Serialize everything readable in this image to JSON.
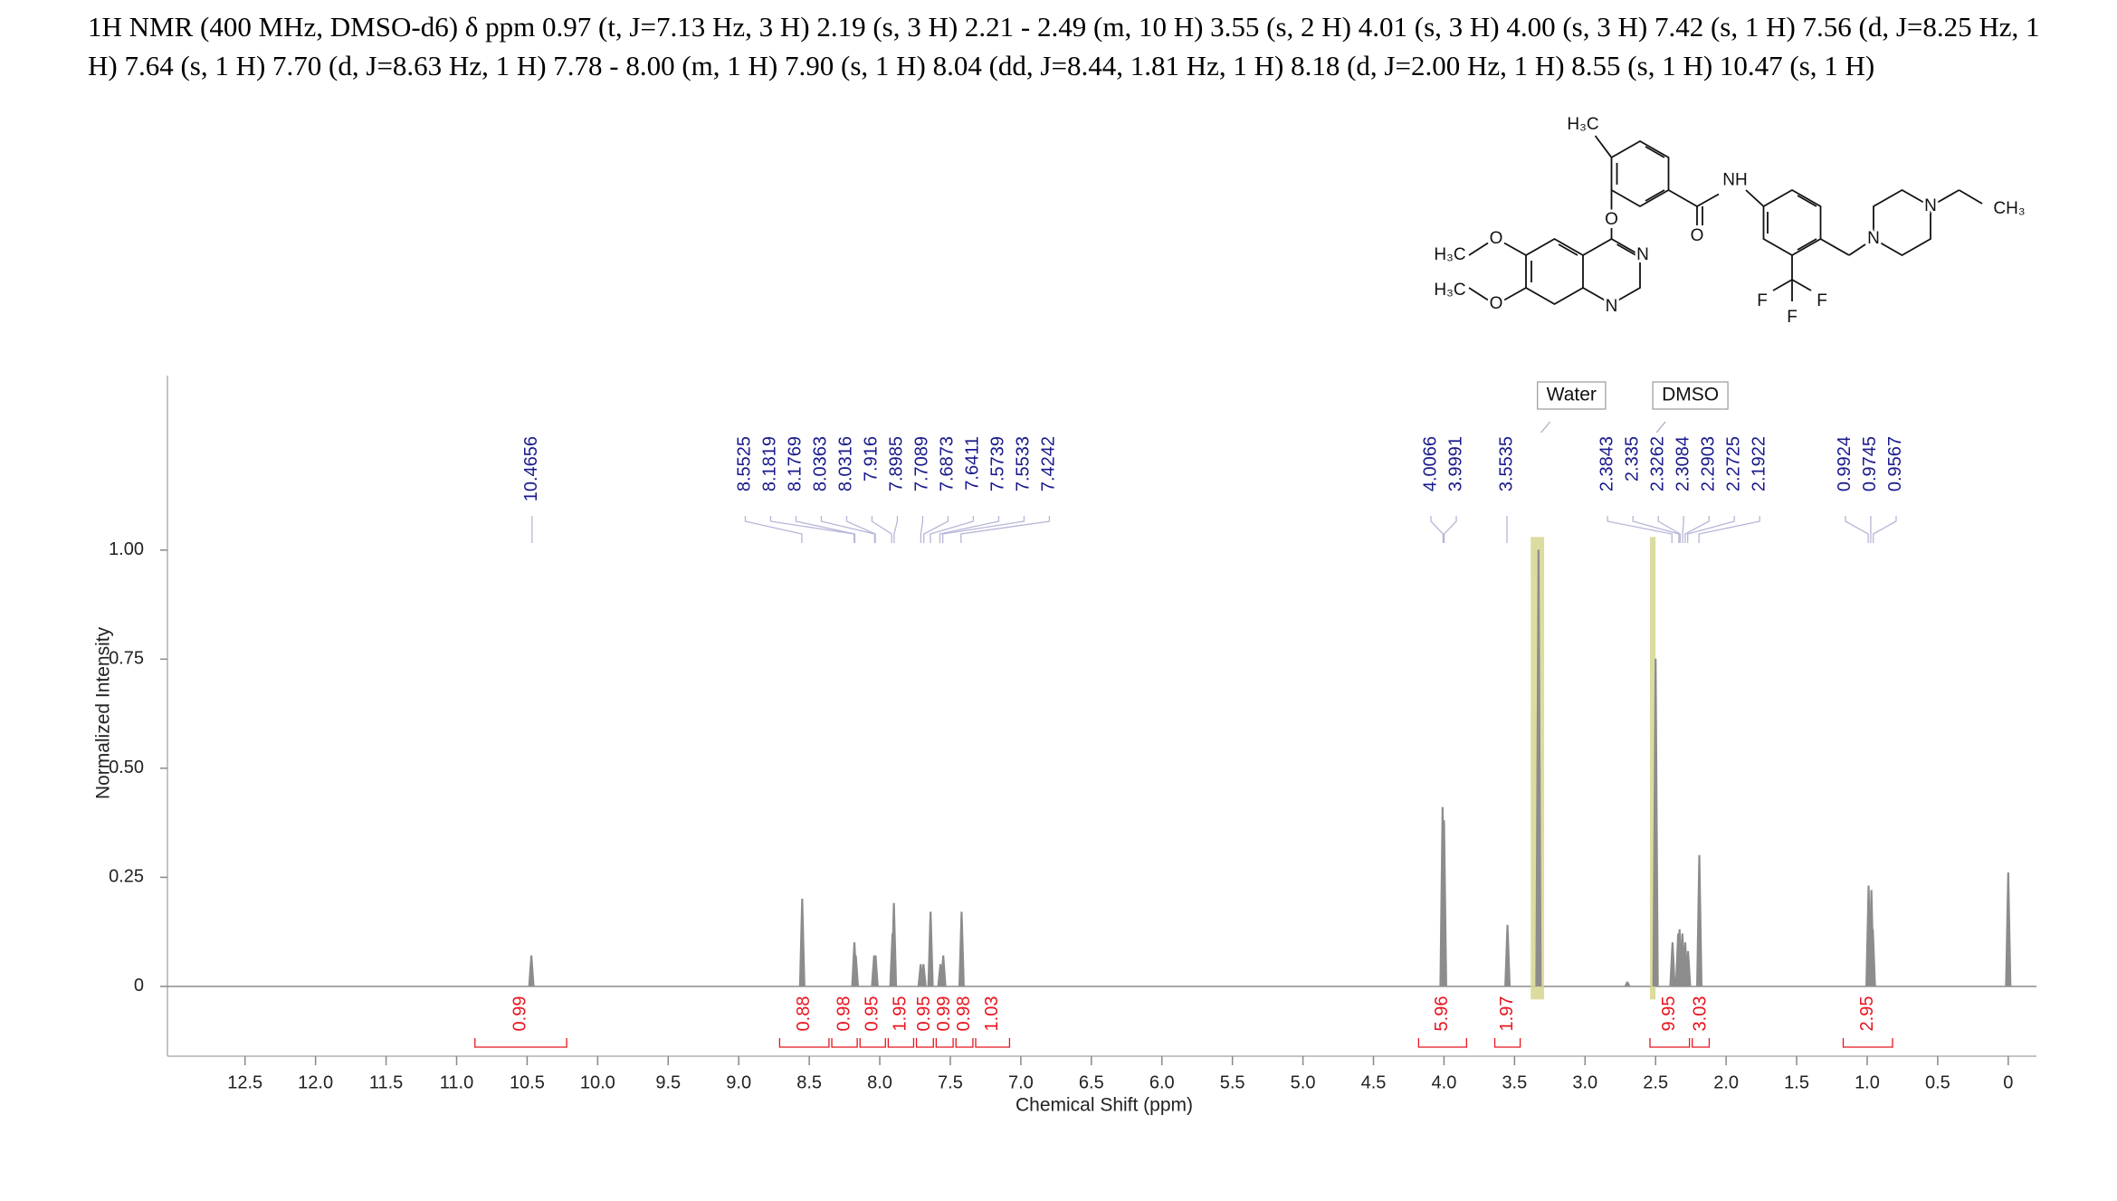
{
  "chart_data": {
    "type": "spectrum",
    "title": "1H NMR (400 MHz, DMSO-d6) δ ppm 0.97 (t, J=7.13 Hz, 3 H) 2.19 (s, 3 H) 2.21 - 2.49 (m, 10 H) 3.55 (s, 2 H) 4.01 (s, 3 H) 4.00 (s, 3 H) 7.42 (s, 1 H) 7.56 (d, J=8.25 Hz, 1 H) 7.64 (s, 1 H) 7.70 (d, J=8.63 Hz, 1 H) 7.78 - 8.00 (m, 1 H) 7.90 (s, 1 H) 8.04 (dd, J=8.44, 1.81 Hz, 1 H) 8.18 (d, J=2.00 Hz, 1 H) 8.55 (s, 1 H) 10.47 (s, 1 H)",
    "x_label": "Chemical Shift (ppm)",
    "y_label": "Normalized Intensity",
    "xlim": [
      13.05,
      -0.2
    ],
    "ylim": [
      -0.16,
      1.4
    ],
    "xticks": [
      12.5,
      {
        "value": 12,
        "label": "12.0"
      },
      11.5,
      {
        "value": 11,
        "label": "11.0"
      },
      10.5,
      {
        "value": 10,
        "label": "10.0"
      },
      9.5,
      {
        "value": 9,
        "label": "9.0"
      },
      8.5,
      {
        "value": 8,
        "label": "8.0"
      },
      7.5,
      {
        "value": 7,
        "label": "7.0"
      },
      6.5,
      {
        "value": 6,
        "label": "6.0"
      },
      5.5,
      {
        "value": 5,
        "label": "5.0"
      },
      4.5,
      {
        "value": 4,
        "label": "4.0"
      },
      3.5,
      {
        "value": 3,
        "label": "3.0"
      },
      2.5,
      {
        "value": 2,
        "label": "2.0"
      },
      1.5,
      {
        "value": 1,
        "label": "1.0"
      },
      0.5,
      0
    ],
    "yticks": [
      0,
      0.25,
      {
        "value": 0.5,
        "label": "0.50"
      },
      0.75,
      {
        "value": 1,
        "label": "1.00"
      }
    ],
    "color": "#8c8c8c",
    "peaks": {
      "x": [
        10.47,
        8.55,
        8.18,
        8.17,
        8.04,
        8.03,
        7.91,
        7.9,
        7.71,
        7.69,
        7.64,
        7.57,
        7.55,
        7.42,
        4.01,
        4.0,
        3.55,
        3.33,
        2.7,
        2.5,
        2.38,
        2.34,
        2.33,
        2.31,
        2.29,
        2.27,
        2.19,
        0.99,
        0.97,
        0.96,
        0
      ],
      "values": [
        0.07,
        0.2,
        0.1,
        0.07,
        0.07,
        0.07,
        0.12,
        0.19,
        0.05,
        0.05,
        0.17,
        0.05,
        0.07,
        0.17,
        0.41,
        0.38,
        0.14,
        1.0,
        0.01,
        0.75,
        0.1,
        0.12,
        0.13,
        0.12,
        0.1,
        0.08,
        0.3,
        0.23,
        0.22,
        0.13,
        0.26
      ]
    },
    "peak_label_groups": [
      [
        10.4656
      ],
      [
        8.5525,
        8.1819,
        8.1769,
        8.0363,
        8.0316,
        7.916,
        7.8985,
        7.7089,
        7.6873,
        7.6411,
        7.5739,
        7.5533,
        7.4242
      ],
      [
        4.0066,
        3.9991
      ],
      [
        3.5535
      ],
      [
        2.3843,
        2.335,
        2.3262,
        2.3084,
        2.2903,
        2.2725,
        2.1922
      ],
      [
        0.9924,
        0.9745,
        0.9567
      ]
    ],
    "peak_label_color": "#1a1a8c",
    "integrals": [
      {
        "range": [
          10.87,
          10.22
        ],
        "value": 0.99
      },
      {
        "range": [
          8.71,
          8.36
        ],
        "value": 0.88
      },
      {
        "range": [
          8.34,
          8.16
        ],
        "value": 0.98
      },
      {
        "range": [
          8.14,
          7.96
        ],
        "value": 0.95
      },
      {
        "range": [
          7.94,
          7.76
        ],
        "value": 1.95
      },
      {
        "range": [
          7.74,
          7.62
        ],
        "value": 0.95
      },
      {
        "range": [
          7.6,
          7.48
        ],
        "value": 0.99
      },
      {
        "range": [
          7.46,
          7.34
        ],
        "value": 0.98
      },
      {
        "range": [
          7.32,
          7.08
        ],
        "value": 1.03
      },
      {
        "range": [
          4.18,
          3.84
        ],
        "value": 5.96
      },
      {
        "range": [
          3.64,
          3.46
        ],
        "value": 1.97
      },
      {
        "range": [
          2.54,
          2.26
        ],
        "value": 9.95
      },
      {
        "range": [
          2.24,
          2.12
        ],
        "value": 3.03
      },
      {
        "range": [
          1.17,
          0.82
        ],
        "value": 2.95
      }
    ],
    "integral_color": "#e8141e",
    "regions": [
      {
        "label": "Water",
        "range": [
          3.385,
          3.29
        ]
      },
      {
        "label": "DMSO",
        "range": [
          2.54,
          2.5
        ]
      }
    ],
    "region_color": "#d6d690",
    "structure_labels": [
      "H₃C",
      "O",
      "O",
      "NH",
      "N",
      "N",
      "CH₃",
      "F",
      "F",
      "F",
      "O",
      "H₃C",
      "O",
      "H₃C",
      "N",
      "N"
    ]
  }
}
